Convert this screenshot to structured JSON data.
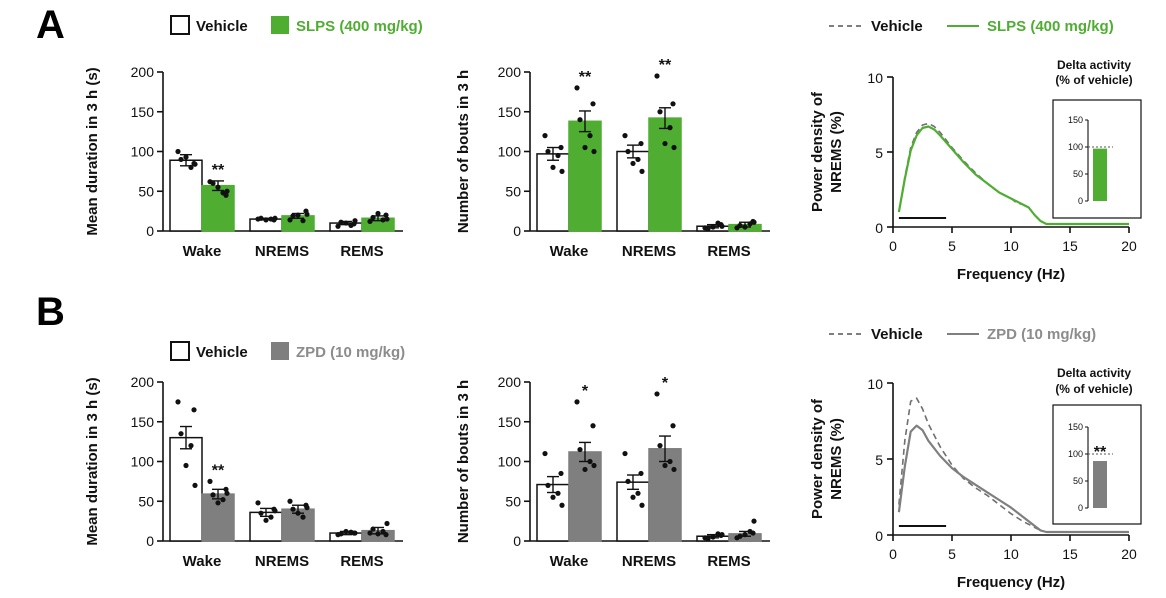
{
  "panels": [
    {
      "letter": "A",
      "colors": {
        "treat": "#4fae32",
        "treat_legend_text": "#4fae32"
      },
      "legend": {
        "vehicle": "Vehicle",
        "treatment": "SLPS (400 mg/kg)"
      },
      "spectrum_legend": {
        "vehicle": "Vehicle",
        "treatment": "SLPS (400 mg/kg)"
      }
    },
    {
      "letter": "B",
      "colors": {
        "treat": "#7f7f7f",
        "treat_legend_text": "#8c8c8c"
      },
      "legend": {
        "vehicle": "Vehicle",
        "treatment": "ZPD (10 mg/kg)"
      },
      "spectrum_legend": {
        "vehicle": "Vehicle",
        "treatment": "ZPD (10 mg/kg)"
      }
    }
  ],
  "chart_data": [
    {
      "type": "bar",
      "panel": "A",
      "ylabel": "Mean duration in 3 h (s)",
      "ylim": [
        0,
        200
      ],
      "yticks": [
        0,
        50,
        100,
        150,
        200
      ],
      "categories": [
        "Wake",
        "NREMS",
        "REMS"
      ],
      "series": [
        {
          "name": "Vehicle",
          "values": [
            89,
            15,
            10
          ],
          "sem": [
            7,
            1,
            2
          ],
          "points": [
            [
              100,
              85,
              90,
              80,
              93,
              84
            ],
            [
              15,
              14,
              16,
              15,
              14,
              16
            ],
            [
              6,
              9,
              11,
              7,
              10,
              13
            ]
          ]
        },
        {
          "name": "SLPS (400 mg/kg)",
          "values": [
            57,
            19,
            16
          ],
          "sem": [
            6,
            3,
            3
          ],
          "points": [
            [
              62,
              45,
              60,
              48,
              55,
              50
            ],
            [
              14,
              25,
              19,
              13,
              20,
              21
            ],
            [
              12,
              20,
              17,
              14,
              22,
              15
            ]
          ]
        }
      ],
      "significance": [
        "**",
        "",
        ""
      ]
    },
    {
      "type": "bar",
      "panel": "A",
      "ylabel": "Number of bouts in 3 h",
      "ylim": [
        0,
        200
      ],
      "yticks": [
        0,
        50,
        100,
        150,
        200
      ],
      "categories": [
        "Wake",
        "NREMS",
        "REMS"
      ],
      "series": [
        {
          "name": "Vehicle",
          "values": [
            97,
            100,
            6
          ],
          "sem": [
            8,
            8,
            2
          ],
          "points": [
            [
              120,
              105,
              100,
              95,
              80,
              75
            ],
            [
              120,
              110,
              100,
              90,
              85,
              75
            ],
            [
              4,
              8,
              3,
              10,
              5,
              6
            ]
          ]
        },
        {
          "name": "SLPS (400 mg/kg)",
          "values": [
            138,
            142,
            8
          ],
          "sem": [
            13,
            13,
            3
          ],
          "points": [
            [
              180,
              160,
              140,
              120,
              105,
              100
            ],
            [
              195,
              160,
              150,
              130,
              110,
              105
            ],
            [
              4,
              12,
              7,
              9,
              5,
              11
            ]
          ]
        }
      ],
      "significance": [
        "**",
        "**",
        ""
      ]
    },
    {
      "type": "line",
      "panel": "A",
      "xlabel": "Frequency (Hz)",
      "ylabel": "Power density of NREMS (%)",
      "xlim": [
        0,
        20
      ],
      "ylim": [
        0,
        10
      ],
      "xticks": [
        0,
        5,
        10,
        15,
        20
      ],
      "yticks": [
        0,
        5,
        10
      ],
      "bar_range_hz": [
        0.5,
        4.5
      ],
      "x": [
        0.5,
        1,
        1.5,
        2,
        2.5,
        3,
        3.5,
        4,
        5,
        6,
        7,
        8,
        9,
        10,
        10.5,
        11,
        11.5,
        12,
        12.5,
        13,
        14,
        16,
        18,
        20
      ],
      "series": [
        {
          "name": "Vehicle",
          "style": "dashed",
          "values": [
            1.0,
            3.3,
            5.3,
            6.3,
            6.8,
            6.9,
            6.7,
            6.3,
            5.3,
            4.4,
            3.6,
            2.9,
            2.3,
            1.9,
            1.6,
            1.5,
            1.3,
            0.8,
            0.4,
            0.2,
            0.2,
            0.2,
            0.2,
            0.2
          ]
        },
        {
          "name": "SLPS (400 mg/kg)",
          "style": "solid",
          "values": [
            1.0,
            3.2,
            5.1,
            6.1,
            6.6,
            6.7,
            6.5,
            6.1,
            5.2,
            4.3,
            3.5,
            2.9,
            2.3,
            1.9,
            1.7,
            1.5,
            1.3,
            0.8,
            0.4,
            0.2,
            0.2,
            0.2,
            0.2,
            0.2
          ]
        }
      ],
      "inset": {
        "type": "bar",
        "title_line1": "Delta activity",
        "title_line2": "(% of vehicle)",
        "ylim": [
          0,
          150
        ],
        "yticks": [
          0,
          50,
          100,
          150
        ],
        "value": 97,
        "reference": 100,
        "significance": ""
      }
    },
    {
      "type": "bar",
      "panel": "B",
      "ylabel": "Mean duration in 3 h (s)",
      "ylim": [
        0,
        200
      ],
      "yticks": [
        0,
        50,
        100,
        150,
        200
      ],
      "categories": [
        "Wake",
        "NREMS",
        "REMS"
      ],
      "series": [
        {
          "name": "Vehicle",
          "values": [
            130,
            36,
            10
          ],
          "sem": [
            14,
            5,
            2
          ],
          "points": [
            [
              175,
              165,
              135,
              120,
              95,
              70
            ],
            [
              48,
              40,
              35,
              30,
              26,
              38
            ],
            [
              8,
              10,
              9,
              11,
              12,
              10
            ]
          ]
        },
        {
          "name": "ZPD (10 mg/kg)",
          "values": [
            59,
            40,
            13
          ],
          "sem": [
            6,
            5,
            4
          ],
          "points": [
            [
              75,
              65,
              58,
              52,
              48,
              60
            ],
            [
              50,
              45,
              40,
              30,
              35,
              42
            ],
            [
              10,
              8,
              15,
              12,
              9,
              22
            ]
          ]
        }
      ],
      "significance": [
        "**",
        "",
        ""
      ]
    },
    {
      "type": "bar",
      "panel": "B",
      "ylabel": "Number of bouts in 3 h",
      "ylim": [
        0,
        200
      ],
      "yticks": [
        0,
        50,
        100,
        150,
        200
      ],
      "categories": [
        "Wake",
        "NREMS",
        "REMS"
      ],
      "series": [
        {
          "name": "Vehicle",
          "values": [
            71,
            74,
            6
          ],
          "sem": [
            10,
            9,
            2
          ],
          "points": [
            [
              110,
              85,
              70,
              60,
              55,
              45
            ],
            [
              110,
              85,
              75,
              60,
              55,
              45
            ],
            [
              4,
              7,
              3,
              9,
              5,
              8
            ]
          ]
        },
        {
          "name": "ZPD (10 mg/kg)",
          "values": [
            112,
            116,
            9
          ],
          "sem": [
            12,
            16,
            3
          ],
          "points": [
            [
              175,
              145,
              115,
              100,
              90,
              95
            ],
            [
              185,
              145,
              120,
              100,
              95,
              90
            ],
            [
              4,
              10,
              6,
              12,
              8,
              25
            ]
          ]
        }
      ],
      "significance": [
        "*",
        "*",
        ""
      ]
    },
    {
      "type": "line",
      "panel": "B",
      "xlabel": "Frequency (Hz)",
      "ylabel": "Power density of NREMS (%)",
      "xlim": [
        0,
        20
      ],
      "ylim": [
        0,
        10
      ],
      "xticks": [
        0,
        5,
        10,
        15,
        20
      ],
      "yticks": [
        0,
        5,
        10
      ],
      "bar_range_hz": [
        0.5,
        4.5
      ],
      "x": [
        0.5,
        1,
        1.5,
        2,
        2.5,
        3,
        4,
        5,
        6,
        7,
        8,
        9,
        10,
        11,
        12,
        12.5,
        13,
        14,
        16,
        18,
        20
      ],
      "series": [
        {
          "name": "Vehicle",
          "style": "dashed",
          "values": [
            2.0,
            6.2,
            8.8,
            9.0,
            8.3,
            7.3,
            5.8,
            4.6,
            3.7,
            3.1,
            2.6,
            2.0,
            1.4,
            0.9,
            0.5,
            0.3,
            0.2,
            0.2,
            0.2,
            0.2,
            0.2
          ]
        },
        {
          "name": "ZPD (10 mg/kg)",
          "style": "solid",
          "values": [
            1.5,
            4.5,
            6.8,
            7.2,
            6.9,
            6.2,
            5.2,
            4.4,
            3.8,
            3.3,
            2.8,
            2.3,
            1.8,
            1.2,
            0.6,
            0.3,
            0.2,
            0.2,
            0.2,
            0.2,
            0.2
          ]
        }
      ],
      "inset": {
        "type": "bar",
        "title_line1": "Delta activity",
        "title_line2": "(% of vehicle)",
        "ylim": [
          0,
          150
        ],
        "yticks": [
          0,
          50,
          100,
          150
        ],
        "value": 87,
        "reference": 100,
        "significance": "**"
      }
    }
  ]
}
